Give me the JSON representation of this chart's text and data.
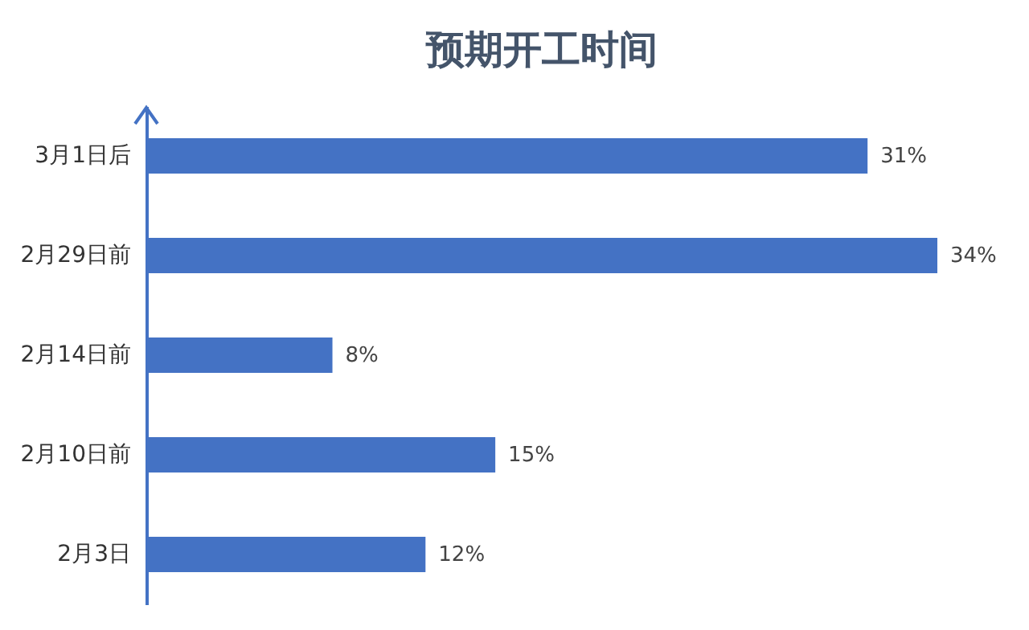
{
  "chart_data": {
    "type": "bar",
    "orientation": "horizontal",
    "title": "预期开工时间",
    "categories": [
      "3月1日后",
      "2月29日前",
      "2月14日前",
      "2月10日前",
      "2月3日"
    ],
    "values": [
      31,
      34,
      8,
      15,
      12
    ],
    "value_labels": [
      "31%",
      "34%",
      "8%",
      "15%",
      "12%"
    ],
    "color": "#4472c4"
  }
}
